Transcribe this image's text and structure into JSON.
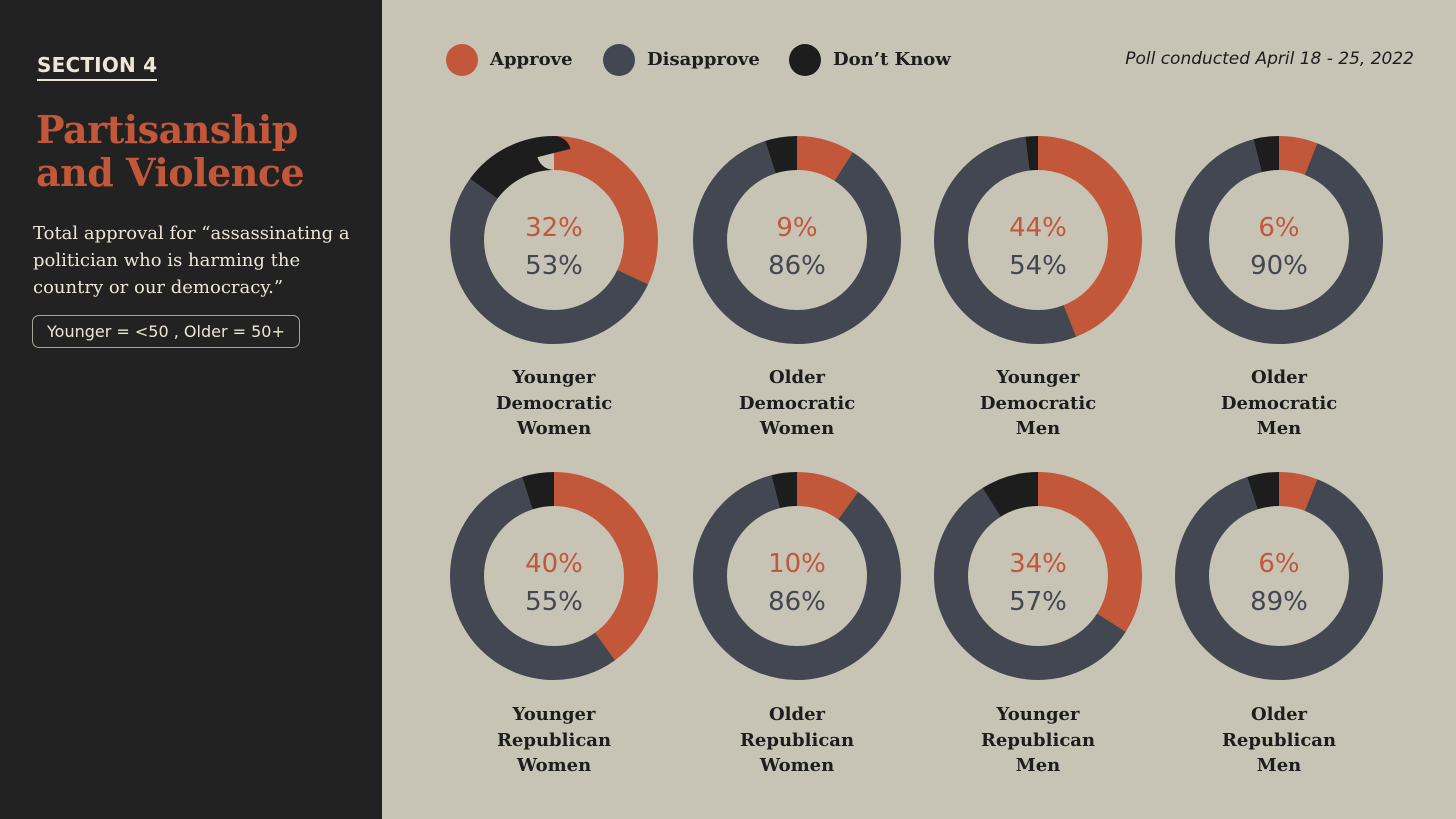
{
  "sidebar": {
    "section": "SECTION 4",
    "title_line1": "Partisanship",
    "title_line2": "and Violence",
    "subtitle": "Total approval for “assassinating a politician who is harming the country or our democracy.”",
    "age_note": "Younger = <50 , Older = 50+"
  },
  "legend": {
    "approve": "Approve",
    "disapprove": "Disapprove",
    "dont_know": "Don’t Know"
  },
  "poll_date": "Poll conducted April 18 - 25, 2022",
  "colors": {
    "approve": "#c2573a",
    "disapprove": "#424752",
    "dont_know": "#1d1d1d"
  },
  "chart_data": {
    "type": "pie",
    "variant": "donut",
    "title": "Total approval for “assassinating a politician who is harming the country or our democracy.”",
    "series_names": [
      "Approve",
      "Disapprove",
      "Don’t Know"
    ],
    "charts": [
      {
        "line1": "Younger",
        "line2": "Democratic",
        "line3": "Women",
        "approve": 32,
        "disapprove": 53,
        "dont_know": 15,
        "approve_label": "32%",
        "disapprove_label": "53%"
      },
      {
        "line1": "Older",
        "line2": "Democratic",
        "line3": "Women",
        "approve": 9,
        "disapprove": 86,
        "dont_know": 5,
        "approve_label": "9%",
        "disapprove_label": "86%"
      },
      {
        "line1": "Younger",
        "line2": "Democratic",
        "line3": "Men",
        "approve": 44,
        "disapprove": 54,
        "dont_know": 2,
        "approve_label": "44%",
        "disapprove_label": "54%"
      },
      {
        "line1": "Older",
        "line2": "Democratic",
        "line3": "Men",
        "approve": 6,
        "disapprove": 90,
        "dont_know": 4,
        "approve_label": "6%",
        "disapprove_label": "90%"
      },
      {
        "line1": "Younger",
        "line2": "Republican",
        "line3": "Women",
        "approve": 40,
        "disapprove": 55,
        "dont_know": 5,
        "approve_label": "40%",
        "disapprove_label": "55%"
      },
      {
        "line1": "Older",
        "line2": "Republican",
        "line3": "Women",
        "approve": 10,
        "disapprove": 86,
        "dont_know": 4,
        "approve_label": "10%",
        "disapprove_label": "86%"
      },
      {
        "line1": "Younger",
        "line2": "Republican",
        "line3": "Men",
        "approve": 34,
        "disapprove": 57,
        "dont_know": 9,
        "approve_label": "34%",
        "disapprove_label": "57%"
      },
      {
        "line1": "Older",
        "line2": "Republican",
        "line3": "Men",
        "approve": 6,
        "disapprove": 89,
        "dont_know": 5,
        "approve_label": "6%",
        "disapprove_label": "89%"
      }
    ]
  }
}
